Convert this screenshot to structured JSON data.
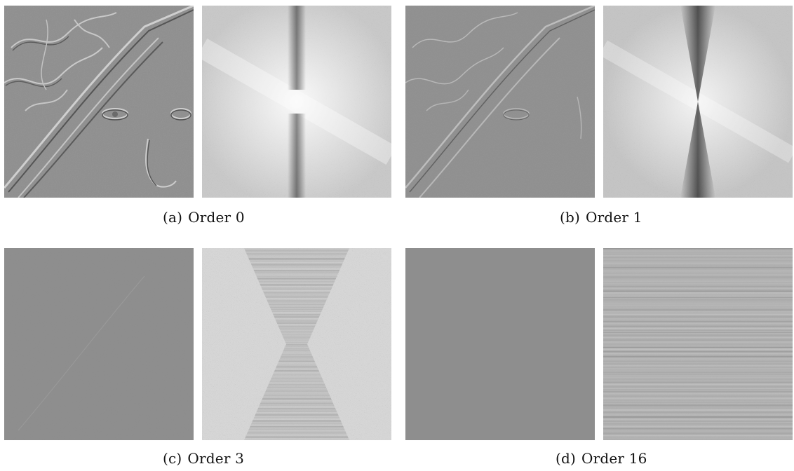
{
  "figure": {
    "panels": [
      {
        "label": "(a)",
        "caption": "Order 0",
        "order": 0
      },
      {
        "label": "(b)",
        "caption": "Order 1",
        "order": 1
      },
      {
        "label": "(c)",
        "caption": "Order 3",
        "order": 3
      },
      {
        "label": "(d)",
        "caption": "Order 16",
        "order": 16
      }
    ]
  }
}
